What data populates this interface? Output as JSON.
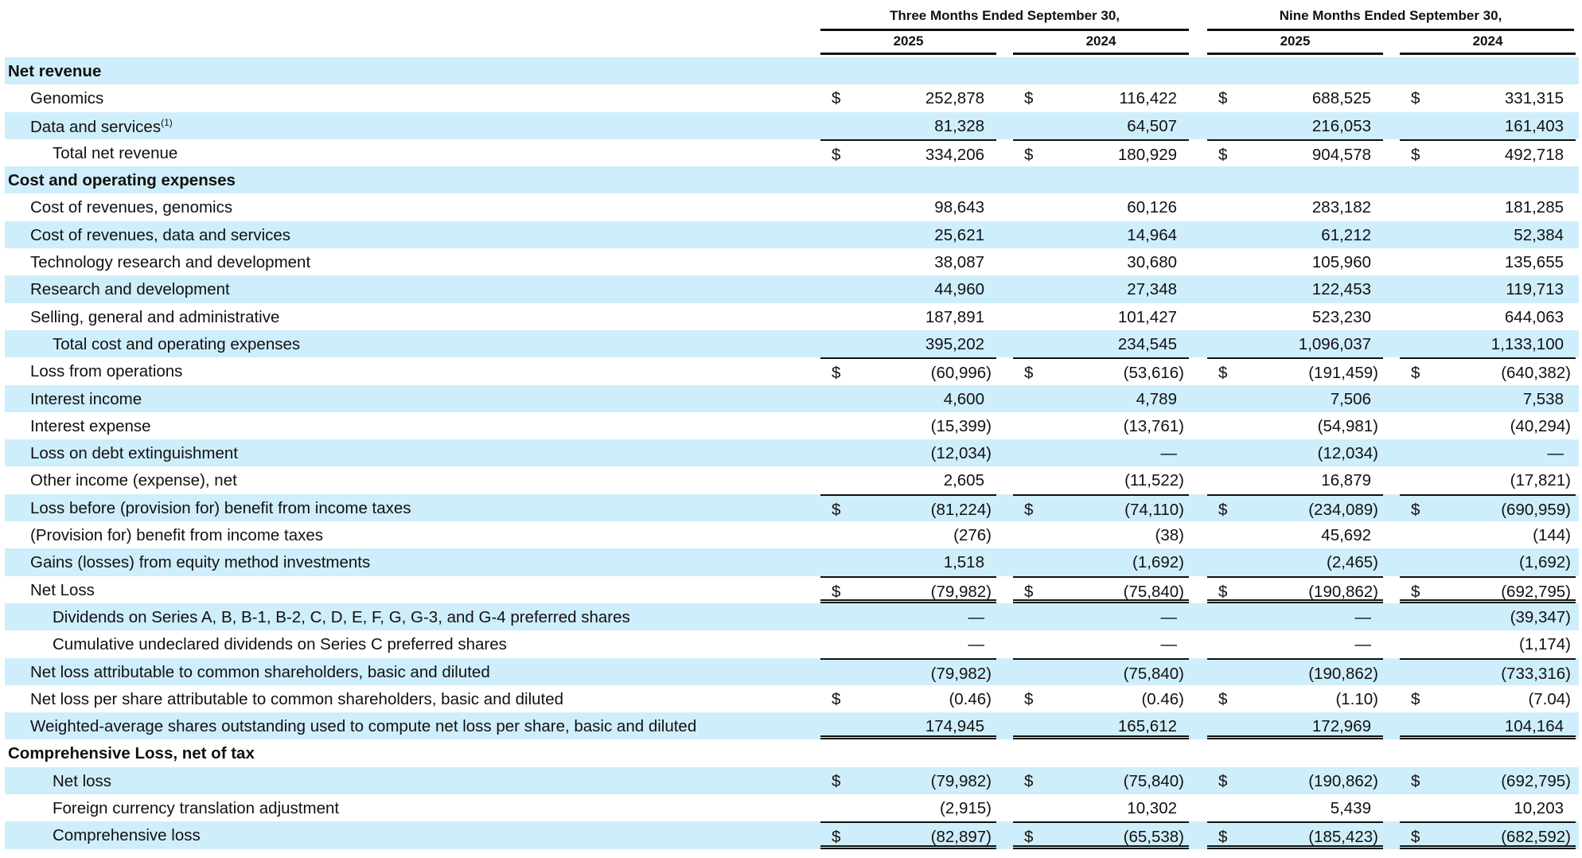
{
  "header": {
    "periods": [
      "Three Months Ended September 30,",
      "Nine Months Ended September 30,"
    ],
    "years": [
      "2025",
      "2024",
      "2025",
      "2024"
    ]
  },
  "rows": [
    {
      "label": "Net revenue",
      "level": 0,
      "values": [
        "",
        "",
        "",
        ""
      ]
    },
    {
      "label": "Genomics",
      "level": 1,
      "dollar": true,
      "values": [
        "252,878",
        "116,422",
        "688,525",
        "331,315"
      ]
    },
    {
      "label": "Data and services",
      "note": "(1)",
      "level": 1,
      "values": [
        "81,328",
        "64,507",
        "216,053",
        "161,403"
      ]
    },
    {
      "label": "Total net revenue",
      "level": 2,
      "dollar": true,
      "values": [
        "334,206",
        "180,929",
        "904,578",
        "492,718"
      ]
    },
    {
      "label": "Cost and operating expenses",
      "level": 0,
      "values": [
        "",
        "",
        "",
        ""
      ]
    },
    {
      "label": "Cost of revenues, genomics",
      "level": 1,
      "values": [
        "98,643",
        "60,126",
        "283,182",
        "181,285"
      ]
    },
    {
      "label": "Cost of revenues, data and services",
      "level": 1,
      "values": [
        "25,621",
        "14,964",
        "61,212",
        "52,384"
      ]
    },
    {
      "label": "Technology research and development",
      "level": 1,
      "values": [
        "38,087",
        "30,680",
        "105,960",
        "135,655"
      ]
    },
    {
      "label": "Research and development",
      "level": 1,
      "values": [
        "44,960",
        "27,348",
        "122,453",
        "119,713"
      ]
    },
    {
      "label": "Selling, general and administrative",
      "level": 1,
      "values": [
        "187,891",
        "101,427",
        "523,230",
        "644,063"
      ]
    },
    {
      "label": "Total cost and operating expenses",
      "level": 2,
      "values": [
        "395,202",
        "234,545",
        "1,096,037",
        "1,133,100"
      ]
    },
    {
      "label": "Loss from operations",
      "level": 1,
      "dollar": true,
      "values": [
        "(60,996)",
        "(53,616)",
        "(191,459)",
        "(640,382)"
      ]
    },
    {
      "label": "Interest income",
      "level": 1,
      "values": [
        "4,600",
        "4,789",
        "7,506",
        "7,538"
      ]
    },
    {
      "label": "Interest expense",
      "level": 1,
      "values": [
        "(15,399)",
        "(13,761)",
        "(54,981)",
        "(40,294)"
      ]
    },
    {
      "label": "Loss on debt extinguishment",
      "level": 1,
      "values": [
        "(12,034)",
        "—",
        "(12,034)",
        "—"
      ]
    },
    {
      "label": "Other income (expense), net",
      "level": 1,
      "values": [
        "2,605",
        "(11,522)",
        "16,879",
        "(17,821)"
      ]
    },
    {
      "label": "Loss before (provision for) benefit from income taxes",
      "level": 1,
      "dollar": true,
      "values": [
        "(81,224)",
        "(74,110)",
        "(234,089)",
        "(690,959)"
      ]
    },
    {
      "label": "(Provision for) benefit from income taxes",
      "level": 1,
      "values": [
        "(276)",
        "(38)",
        "45,692",
        "(144)"
      ]
    },
    {
      "label": "Gains (losses) from equity method investments",
      "level": 1,
      "values": [
        "1,518",
        "(1,692)",
        "(2,465)",
        "(1,692)"
      ]
    },
    {
      "label": "Net Loss",
      "level": 1,
      "dollar": true,
      "values": [
        "(79,982)",
        "(75,840)",
        "(190,862)",
        "(692,795)"
      ]
    },
    {
      "label": "Dividends on Series A, B, B-1, B-2, C, D, E, F, G, G-3, and G-4 preferred shares",
      "level": 2,
      "values": [
        "—",
        "—",
        "—",
        "(39,347)"
      ]
    },
    {
      "label": "Cumulative undeclared dividends on Series C preferred shares",
      "level": 2,
      "values": [
        "—",
        "—",
        "—",
        "(1,174)"
      ]
    },
    {
      "label": "Net loss attributable to common shareholders, basic and diluted",
      "level": 1,
      "values": [
        "(79,982)",
        "(75,840)",
        "(190,862)",
        "(733,316)"
      ]
    },
    {
      "label": "Net loss per share attributable to common shareholders, basic and diluted",
      "level": 1,
      "dollar": true,
      "values": [
        "(0.46)",
        "(0.46)",
        "(1.10)",
        "(7.04)"
      ]
    },
    {
      "label": "Weighted-average shares outstanding used to compute net loss per share, basic and diluted",
      "level": 1,
      "values": [
        "174,945",
        "165,612",
        "172,969",
        "104,164"
      ]
    },
    {
      "label": "Comprehensive Loss, net of tax",
      "level": 0,
      "values": [
        "",
        "",
        "",
        ""
      ]
    },
    {
      "label": "Net loss",
      "level": 2,
      "dollar": true,
      "values": [
        "(79,982)",
        "(75,840)",
        "(190,862)",
        "(692,795)"
      ]
    },
    {
      "label": "Foreign currency translation adjustment",
      "level": 2,
      "values": [
        "(2,915)",
        "10,302",
        "5,439",
        "10,203"
      ]
    },
    {
      "label": "Comprehensive loss",
      "level": 2,
      "dollar": true,
      "values": [
        "(82,897)",
        "(65,538)",
        "(185,423)",
        "(682,592)"
      ]
    }
  ],
  "currency_symbol": "$",
  "colors": {
    "row_shade": "#cfeefb",
    "rule": "#111111"
  }
}
